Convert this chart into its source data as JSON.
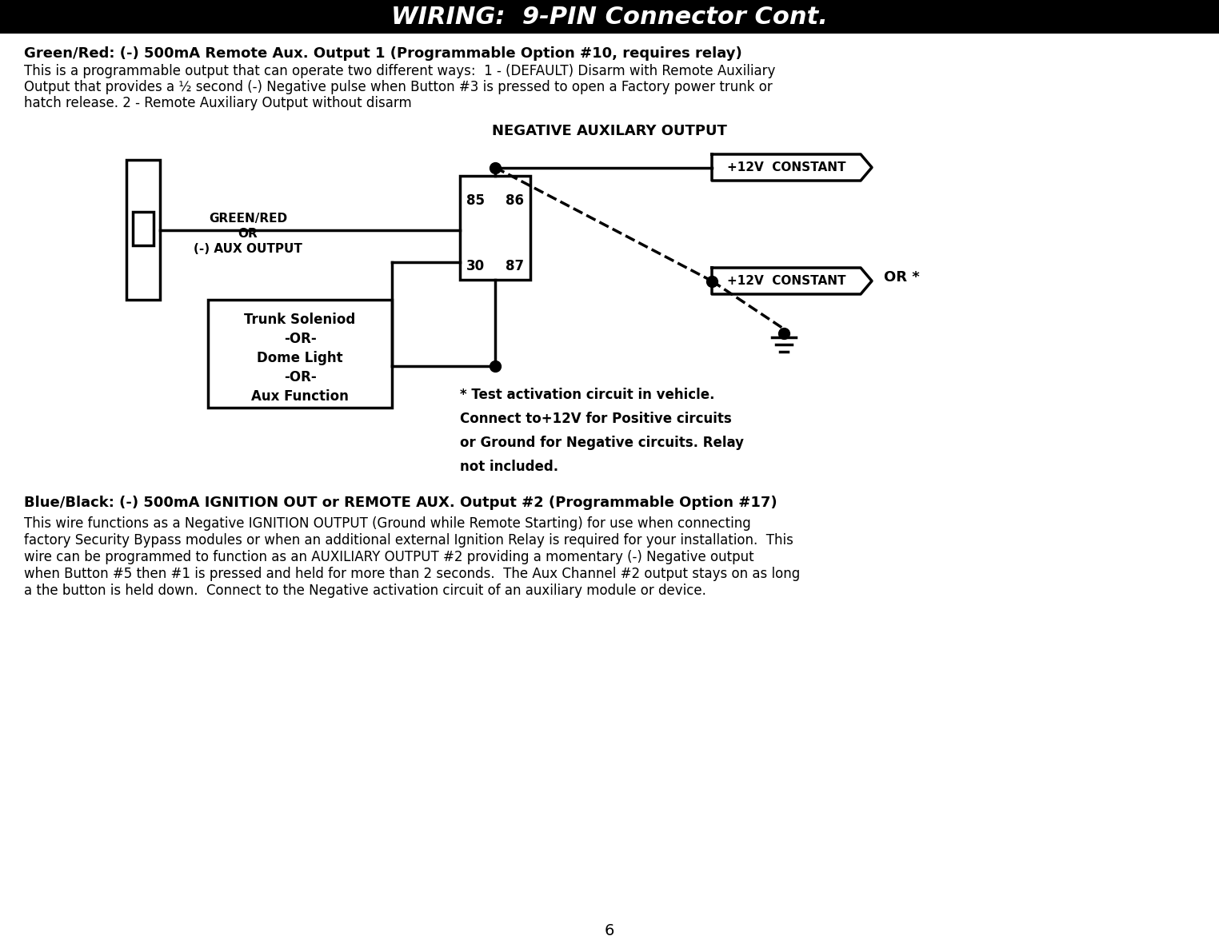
{
  "title": "WIRING:  9-PIN Connector Cont.",
  "title_bg": "#000000",
  "title_fg": "#ffffff",
  "page_bg": "#ffffff",
  "page_number": "6",
  "green_red_heading": "Green/Red: (-) 500mA Remote Aux. Output 1 (Programmable Option #10, requires relay)",
  "green_red_lines": [
    "This is a programmable output that can operate two different ways:  1 - (DEFAULT) Disarm with Remote Auxiliary",
    "Output that provides a ½ second (-) Negative pulse when Button #3 is pressed to open a Factory power trunk or",
    "hatch release. 2 - Remote Auxiliary Output without disarm"
  ],
  "diagram_title": "NEGATIVE AUXILARY OUTPUT",
  "connector_label": [
    "GREEN/RED",
    "OR",
    "(-) AUX OUTPUT"
  ],
  "box_label": [
    "Trunk Soleniod",
    "-OR-",
    "Dome Light",
    "-OR-",
    "Aux Function"
  ],
  "v12_label1": "+12V  CONSTANT",
  "v12_label2": "+12V  CONSTANT",
  "or_star_label": "OR *",
  "test_note_lines": [
    "* Test activation circuit in vehicle.",
    "Connect to+12V for Positive circuits",
    "or Ground for Negative circuits. Relay",
    "not included."
  ],
  "blue_black_heading": "Blue/Black: (-) 500mA IGNITION OUT or REMOTE AUX. Output #2 (Programmable Option #17)",
  "blue_black_lines": [
    "This wire functions as a Negative IGNITION OUTPUT (Ground while Remote Starting) for use when connecting",
    "factory Security Bypass modules or when an additional external Ignition Relay is required for your installation.  This",
    "wire can be programmed to function as an AUXILIARY OUTPUT #2 providing a momentary (-) Negative output",
    "when Button #5 then #1 is pressed and held for more than 2 seconds.  The Aux Channel #2 output stays on as long",
    "a the button is held down.  Connect to the Negative activation circuit of an auxiliary module or device."
  ]
}
